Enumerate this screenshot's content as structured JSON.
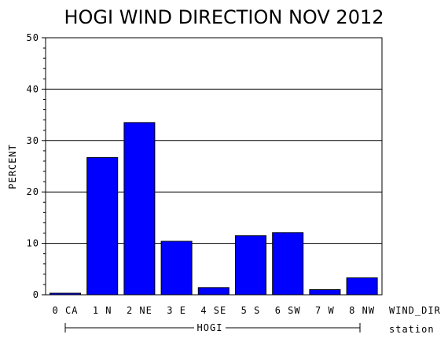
{
  "chart_data": {
    "type": "bar",
    "title": "HOGI WIND DIRECTION NOV 2012",
    "ylabel": "PERCENT",
    "xlabel": "WIND_DIR",
    "group_label": "HOGI",
    "group_axis_label": "station",
    "ylim": [
      0,
      50
    ],
    "yticks": [
      "0",
      "10",
      "20",
      "30",
      "40",
      "50"
    ],
    "grid": true,
    "categories": [
      "0 CA",
      "1 N",
      "2 NE",
      "3 E",
      "4 SE",
      "5 S",
      "6 SW",
      "7 W",
      "8 NW"
    ],
    "values": [
      0.3,
      26.7,
      33.5,
      10.4,
      1.4,
      11.5,
      12.1,
      1.0,
      3.3
    ],
    "bar_color": "#0000ff"
  }
}
